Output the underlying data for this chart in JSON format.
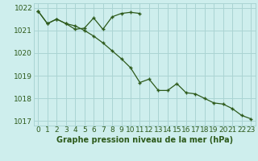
{
  "title": "Graphe pression niveau de la mer (hPa)",
  "bg_color": "#ceeeed",
  "grid_color": "#aad4d3",
  "line_color": "#2d5a1b",
  "text_color": "#2d5a1b",
  "xlim": [
    -0.5,
    23.5
  ],
  "ylim": [
    1016.8,
    1022.2
  ],
  "yticks": [
    1017,
    1018,
    1019,
    1020,
    1021,
    1022
  ],
  "xticks": [
    0,
    1,
    2,
    3,
    4,
    5,
    6,
    7,
    8,
    9,
    10,
    11,
    12,
    13,
    14,
    15,
    16,
    17,
    18,
    19,
    20,
    21,
    22,
    23
  ],
  "series1_x": [
    0,
    1,
    2,
    3,
    4,
    5,
    6,
    7,
    8,
    9,
    10,
    11
  ],
  "series1_y": [
    1021.85,
    1021.3,
    1021.5,
    1021.3,
    1021.05,
    1021.1,
    1021.55,
    1021.05,
    1021.6,
    1021.75,
    1021.8,
    1021.75
  ],
  "series2_x": [
    0,
    1,
    2,
    3,
    4,
    5,
    6,
    7,
    8,
    9,
    10,
    11,
    12,
    13,
    14,
    15,
    16,
    17,
    18,
    19,
    20,
    21,
    22,
    23
  ],
  "series2_y": [
    1021.85,
    1021.3,
    1021.5,
    1021.3,
    1021.2,
    1021.0,
    1020.75,
    1020.45,
    1020.1,
    1019.75,
    1019.35,
    1018.7,
    1018.85,
    1018.35,
    1018.35,
    1018.65,
    1018.25,
    1018.2,
    1018.0,
    1017.8,
    1017.75,
    1017.55,
    1017.25,
    1017.1
  ],
  "xlabel_fontsize": 6.5,
  "ylabel_fontsize": 6.5,
  "title_fontsize": 7.0
}
